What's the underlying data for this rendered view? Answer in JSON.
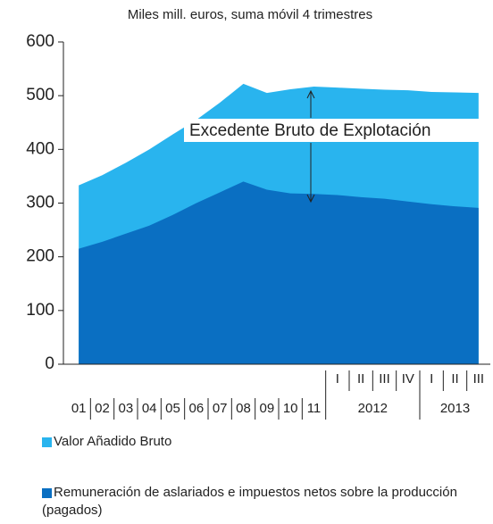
{
  "chart_data": {
    "type": "area",
    "title": "Miles mill. euros, suma móvil 4 trimestres",
    "categories": [
      "01",
      "02",
      "03",
      "04",
      "05",
      "06",
      "07",
      "08",
      "09",
      "10",
      "11",
      "I",
      "II",
      "III",
      "IV",
      "I",
      "II",
      "III"
    ],
    "groups": [
      {
        "label": "2012",
        "categories": [
          "I",
          "II",
          "III",
          "IV"
        ]
      },
      {
        "label": "2013",
        "categories": [
          "I",
          "II",
          "III"
        ]
      }
    ],
    "series": [
      {
        "name": "Valor Añadido Bruto",
        "color": "#29b4ee",
        "values": [
          333,
          352,
          375,
          400,
          428,
          455,
          487,
          522,
          505,
          512,
          517,
          515,
          513,
          511,
          510,
          507,
          506,
          505
        ]
      },
      {
        "name": "Remuneración de aslariados  e impuestos netos sobre la producción (pagados)",
        "color": "#0a6fc2",
        "values": [
          215,
          228,
          243,
          258,
          278,
          300,
          320,
          340,
          325,
          318,
          317,
          315,
          311,
          308,
          303,
          298,
          294,
          291
        ]
      }
    ],
    "annotation": "Excedente Bruto de Explotación",
    "ylim": [
      0,
      600
    ],
    "yticks": [
      0,
      100,
      200,
      300,
      400,
      500,
      600
    ]
  }
}
